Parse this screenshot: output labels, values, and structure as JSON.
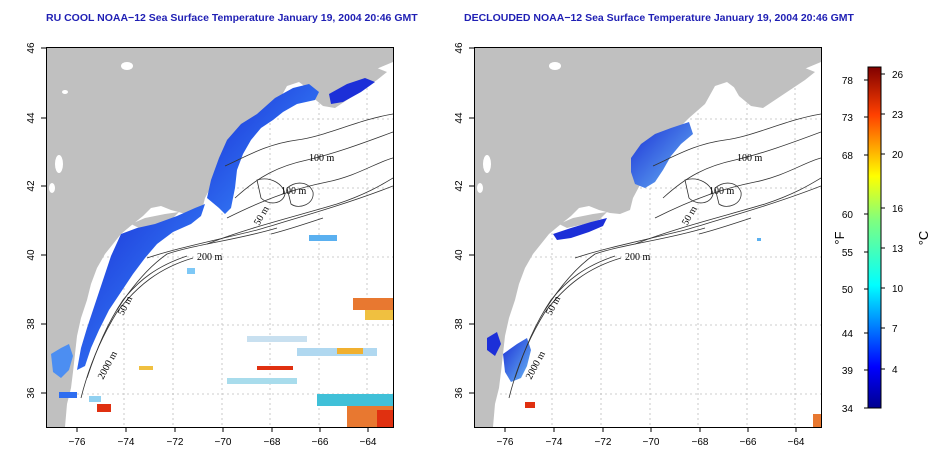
{
  "titles": {
    "left": "RU COOL NOAA−12 Sea Surface Temperature January 19, 2004 20:46 GMT",
    "right": "DECLOUDED NOAA−12 Sea Surface Temperature January 19, 2004 20:46 GMT"
  },
  "axes": {
    "x_ticks": [
      "−76",
      "−74",
      "−72",
      "−70",
      "−68",
      "−66",
      "−64"
    ],
    "y_ticks": [
      "36",
      "38",
      "40",
      "42",
      "44",
      "46"
    ]
  },
  "contour_labels": {
    "m100a": "100 m",
    "m100b": "100 m",
    "m50a": "50 m",
    "m200": "200 m",
    "m50b": "50 m",
    "m2000": "2000 m"
  },
  "colorbar": {
    "fahrenheit_ticks": [
      "78",
      "73",
      "68",
      "60",
      "55",
      "50",
      "44",
      "39",
      "34"
    ],
    "celsius_ticks": [
      "26",
      "23",
      "20",
      "16",
      "13",
      "10",
      "7",
      "4"
    ],
    "unit_f": "°F",
    "unit_c": "°C"
  },
  "colors": {
    "land": "#c0c0c0",
    "title": "#1f1fb4",
    "cold": "#1c2fd8",
    "warm": "#e03010"
  }
}
